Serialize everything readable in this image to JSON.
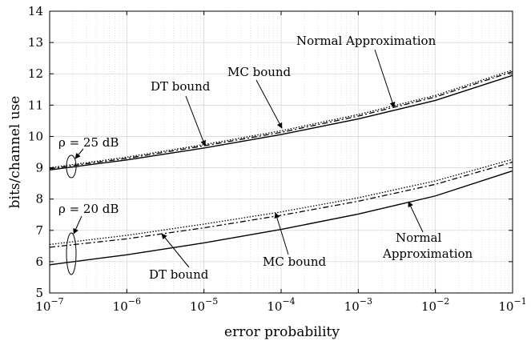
{
  "chart_data": {
    "type": "line",
    "title": "",
    "xlabel": "error probability",
    "ylabel": "bits/channel use",
    "xscale": "log",
    "xlim": [
      1e-07,
      0.1
    ],
    "ylim": [
      5,
      14
    ],
    "grid": true,
    "x_tick_labels": [
      {
        "base": "10",
        "exp": "−7"
      },
      {
        "base": "10",
        "exp": "−6"
      },
      {
        "base": "10",
        "exp": "−5"
      },
      {
        "base": "10",
        "exp": "−4"
      },
      {
        "base": "10",
        "exp": "−3"
      },
      {
        "base": "10",
        "exp": "−2"
      },
      {
        "base": "10",
        "exp": "−1"
      }
    ],
    "y_tick_labels": [
      "5",
      "6",
      "7",
      "8",
      "9",
      "10",
      "11",
      "12",
      "13",
      "14"
    ],
    "x": [
      1e-07,
      1e-06,
      1e-05,
      0.0001,
      0.001,
      0.01,
      0.1
    ],
    "series": [
      {
        "name": "Normal Approximation (ρ = 25 dB)",
        "style": "solid",
        "values": [
          8.93,
          9.25,
          9.63,
          10.06,
          10.56,
          11.15,
          11.95
        ]
      },
      {
        "name": "MC bound (ρ = 25 dB)",
        "style": "dashdot",
        "values": [
          8.97,
          9.3,
          9.7,
          10.13,
          10.65,
          11.26,
          12.07
        ]
      },
      {
        "name": "DT bound (ρ = 25 dB)",
        "style": "dotted",
        "values": [
          9.0,
          9.34,
          9.74,
          10.18,
          10.7,
          11.31,
          12.12
        ]
      },
      {
        "name": "Normal Approximation (ρ = 20 dB)",
        "style": "solid",
        "values": [
          5.9,
          6.22,
          6.6,
          7.03,
          7.52,
          8.1,
          8.9
        ]
      },
      {
        "name": "MC bound (ρ = 20 dB)",
        "style": "dashdot",
        "values": [
          6.46,
          6.73,
          7.08,
          7.48,
          7.93,
          8.47,
          9.18
        ]
      },
      {
        "name": "DT bound (ρ = 20 dB)",
        "style": "dotted",
        "values": [
          6.55,
          6.84,
          7.2,
          7.59,
          8.04,
          8.58,
          9.27
        ]
      }
    ],
    "annotations": {
      "rho25": "ρ = 25 dB",
      "rho20": "ρ = 20 dB",
      "normal_top": "Normal Approximation",
      "mc_top": "MC bound",
      "dt_top": "DT bound",
      "normal_bottom_1": "Normal",
      "normal_bottom_2": "Approximation",
      "mc_bottom": "MC bound",
      "dt_bottom": "DT bound"
    }
  }
}
